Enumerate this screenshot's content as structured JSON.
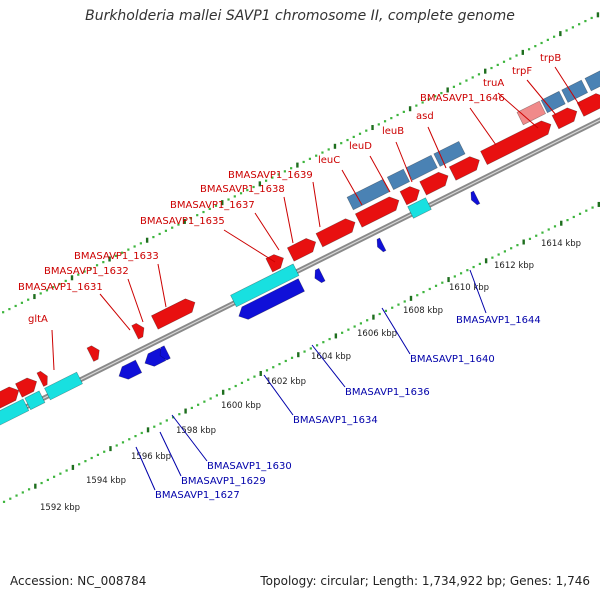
{
  "title": "Burkholderia mallei SAVP1 chromosome II, complete genome",
  "footer": {
    "accession": "Accession: NC_008784",
    "stats": "Topology: circular; Length: 1,734,922 bp; Genes: 1,746"
  },
  "colors": {
    "forward_gene": "#e81010",
    "forward_cds_teal": "#4a82b4",
    "forward_cds_pink": "#f08a8a",
    "reverse_gene": "#1010d8",
    "reverse_cds_cyan": "#18e0e0",
    "backbone": "#8a8a8a",
    "tick_dark": "#1e6e1e",
    "tick_light": "#3cb43c",
    "label_forward": "#cc0000",
    "label_reverse": "#0000aa"
  },
  "forward_labels": [
    "gltA",
    "BMASAVP1_1631",
    "BMASAVP1_1632",
    "BMASAVP1_1633",
    "BMASAVP1_1635",
    "BMASAVP1_1637",
    "BMASAVP1_1638",
    "BMASAVP1_1639",
    "leuC",
    "leuD",
    "leuB",
    "asd",
    "BMASAVP1_1646",
    "truA",
    "trpF",
    "trpB"
  ],
  "reverse_labels": [
    "BMASAVP1_1627",
    "BMASAVP1_1629",
    "BMASAVP1_1630",
    "BMASAVP1_1634",
    "BMASAVP1_1636",
    "BMASAVP1_1640",
    "BMASAVP1_1644"
  ],
  "kbp_labels": [
    "1592 kbp",
    "1594 kbp",
    "1596 kbp",
    "1598 kbp",
    "1600 kbp",
    "1602 kbp",
    "1604 kbp",
    "1606 kbp",
    "1608 kbp",
    "1610 kbp",
    "1612 kbp",
    "1614 kbp"
  ]
}
